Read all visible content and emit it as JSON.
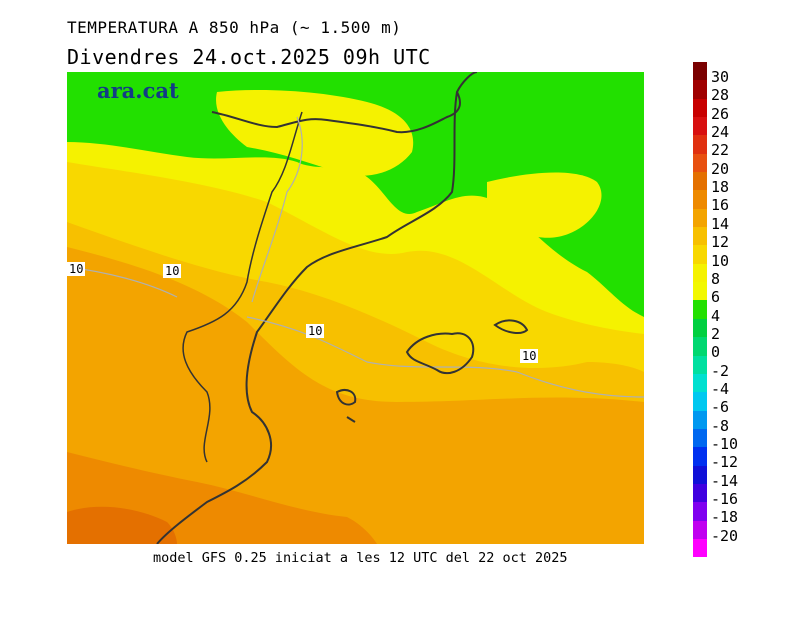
{
  "header": {
    "title": "TEMPERATURA A 850 hPa (~ 1.500 m)",
    "subtitle": "Divendres  24.oct.2025 09h UTC"
  },
  "map": {
    "logo": "ara.cat",
    "contour_label": "10",
    "contour_labels_count": 5,
    "colors": {
      "green": "#22e000",
      "yellow": "#f5f200",
      "yellow_orange": "#f8d800",
      "light_orange": "#f7c000",
      "orange": "#f3a400",
      "dark_orange": "#ee8a00",
      "coast": "#333333",
      "logo": "#133b86"
    }
  },
  "footer": {
    "text": "model GFS 0.25 iniciat a les 12 UTC del 22 oct 2025"
  },
  "colorbar": {
    "labels": [
      "30",
      "28",
      "26",
      "24",
      "22",
      "20",
      "18",
      "16",
      "14",
      "12",
      "10",
      "8",
      "6",
      "4",
      "2",
      "0",
      "-2",
      "-4",
      "-6",
      "-8",
      "-10",
      "-12",
      "-14",
      "-16",
      "-18",
      "-20"
    ],
    "colors": [
      "#7a0000",
      "#a00000",
      "#c80000",
      "#d81010",
      "#e03010",
      "#e85010",
      "#e47000",
      "#ee8a00",
      "#f3a400",
      "#f7c000",
      "#f8d800",
      "#f5f200",
      "#f2f800",
      "#22e000",
      "#00d040",
      "#00d870",
      "#00e0a0",
      "#00e0d0",
      "#00c8f0",
      "#0098f0",
      "#0068f0",
      "#0030f0",
      "#1010d8",
      "#4000e0",
      "#8000f0",
      "#c000f0",
      "#ff00ff"
    ]
  }
}
